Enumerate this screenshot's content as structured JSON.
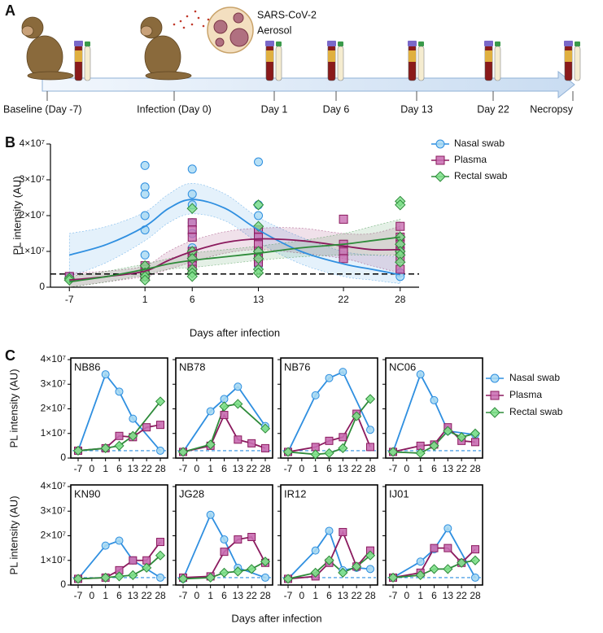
{
  "panel_labels": [
    "A",
    "B",
    "C"
  ],
  "panel_a": {
    "aerosol_label": [
      "SARS-CoV-2",
      "Aerosol"
    ],
    "timepoints": [
      "Baseline (Day -7)",
      "Infection (Day 0)",
      "Day 1",
      "Day 6",
      "Day 13",
      "Day 22",
      "Necropsy"
    ]
  },
  "chart_data": [
    {
      "type": "scatter_fit",
      "ylabel": "PL intensity (AU)",
      "xlabel": "Days after infection",
      "xlim": [
        -9,
        30
      ],
      "xticks": [
        -7,
        1,
        6,
        13,
        22,
        28
      ],
      "ylim": [
        0,
        40000000
      ],
      "yticks": [
        0,
        {
          "value": 10000000,
          "label": "1×10⁷"
        },
        {
          "value": 20000000,
          "label": "2×10⁷"
        },
        {
          "value": 30000000,
          "label": "3×10⁷"
        },
        {
          "value": 40000000,
          "label": "4×10⁷"
        }
      ],
      "threshold": 3700000,
      "series": [
        {
          "name": "Nasal swab",
          "color": "#2f8fe0",
          "fill": "#a6d8f2",
          "marker": "circle",
          "x": [
            -7,
            -7,
            -7,
            1,
            1,
            1,
            1,
            1,
            1,
            6,
            6,
            6,
            6,
            6,
            6,
            6,
            13,
            13,
            13,
            13,
            13,
            13,
            13,
            13,
            13,
            28,
            28,
            28,
            28
          ],
          "values": [
            2800000,
            3000000,
            2900000,
            34000000,
            28000000,
            26000000,
            20000000,
            16000000,
            9000000,
            33000000,
            26000000,
            23000000,
            18000000,
            15000000,
            11000000,
            7000000,
            35000000,
            23000000,
            20000000,
            16000000,
            14000000,
            10000000,
            8000000,
            7000000,
            6000000,
            11000000,
            10000000,
            4000000,
            3000000
          ],
          "fit": {
            "x": [
              -7,
              -3,
              1,
              3.5,
              6,
              9.5,
              13,
              17.5,
              22,
              25,
              28
            ],
            "values": [
              9000000,
              12000000,
              17000000,
              22000000,
              24500000,
              22000000,
              16000000,
              10000000,
              6500000,
              5000000,
              3500000
            ],
            "lower": [
              3000000,
              7000000,
              13000000,
              18000000,
              20500000,
              18500000,
              12500000,
              6500000,
              3000000,
              2000000,
              1000000
            ],
            "upper": [
              15000000,
              17000000,
              21000000,
              26000000,
              29000000,
              26000000,
              19500000,
              14000000,
              10000000,
              9000000,
              8500000
            ]
          }
        },
        {
          "name": "Plasma",
          "color": "#8b1a5e",
          "fill": "#c86bb0",
          "marker": "square",
          "x": [
            -7,
            1,
            1,
            1,
            1,
            1,
            6,
            6,
            6,
            6,
            6,
            6,
            6,
            6,
            13,
            13,
            13,
            13,
            13,
            13,
            22,
            22,
            22,
            22,
            28,
            28,
            28,
            28,
            28,
            28
          ],
          "values": [
            3000000,
            6000000,
            5000000,
            4000000,
            3500000,
            3000000,
            18000000,
            16000000,
            14000000,
            10000000,
            9000000,
            8000000,
            6000000,
            5000000,
            16000000,
            14000000,
            12000000,
            10000000,
            8000000,
            7000000,
            19000000,
            12000000,
            10000000,
            8000000,
            17000000,
            14000000,
            12000000,
            10000000,
            8000000,
            5000000
          ],
          "fit": {
            "x": [
              -7,
              -3,
              1,
              3.5,
              6,
              9.5,
              13,
              17.5,
              22,
              25,
              28
            ],
            "values": [
              2000000,
              3000000,
              4500000,
              7500000,
              10000000,
              12500000,
              13500000,
              13000000,
              11500000,
              10500000,
              10500000
            ],
            "lower": [
              0,
              1500000,
              3000000,
              5000000,
              7000000,
              9500000,
              10500000,
              9500000,
              8000000,
              6000000,
              4000000
            ],
            "upper": [
              4000000,
              4500000,
              6000000,
              10000000,
              13000000,
              15500000,
              16500000,
              16500000,
              15000000,
              15000000,
              17000000
            ]
          }
        },
        {
          "name": "Rectal swab",
          "color": "#2e8b3a",
          "fill": "#7ee08a",
          "marker": "diamond",
          "x": [
            -7,
            -7,
            1,
            1,
            1,
            1,
            6,
            6,
            6,
            6,
            6,
            6,
            13,
            13,
            13,
            13,
            13,
            13,
            28,
            28,
            28,
            28,
            28,
            28,
            28
          ],
          "values": [
            2500000,
            2000000,
            6000000,
            4000000,
            3000000,
            2000000,
            22000000,
            10000000,
            8000000,
            5000000,
            4000000,
            3000000,
            23000000,
            17000000,
            10000000,
            8000000,
            5000000,
            4000000,
            24000000,
            23000000,
            14000000,
            12000000,
            10000000,
            9000000,
            7000000
          ],
          "fit": {
            "x": [
              -7,
              -3,
              1,
              3.5,
              6,
              9.5,
              13,
              17.5,
              22,
              25,
              28
            ],
            "values": [
              1500000,
              3000000,
              5000000,
              6500000,
              7500000,
              8500000,
              9500000,
              11000000,
              12000000,
              13000000,
              14000000
            ],
            "lower": [
              0,
              1500000,
              3500000,
              5000000,
              5500000,
              6500000,
              7500000,
              8500000,
              9000000,
              9000000,
              9000000
            ],
            "upper": [
              3000000,
              4500000,
              6500000,
              8000000,
              9500000,
              10500000,
              11500000,
              13000000,
              15000000,
              17000000,
              19000000
            ]
          }
        }
      ]
    },
    {
      "type": "line_panels",
      "ylabel": "PL intensity (AU)",
      "xlabel": "Days after infection",
      "categories": [
        "-7",
        "0",
        "1",
        "6",
        "13",
        "22",
        "28"
      ],
      "ylim": [
        0,
        40000000
      ],
      "yticks": [
        0,
        {
          "value": 10000000,
          "label": "1×10⁷"
        },
        {
          "value": 20000000,
          "label": "2×10⁷"
        },
        {
          "value": 30000000,
          "label": "3×10⁷"
        },
        {
          "value": 40000000,
          "label": "4×10⁷"
        }
      ],
      "baseline": 3000000,
      "series": [
        {
          "name": "Nasal swab",
          "color": "#2f8fe0",
          "fill": "#a6d8f2",
          "marker": "circle"
        },
        {
          "name": "Plasma",
          "color": "#8b1a5e",
          "fill": "#c86bb0",
          "marker": "square"
        },
        {
          "name": "Rectal swab",
          "color": "#2e8b3a",
          "fill": "#7ee08a",
          "marker": "diamond"
        }
      ],
      "panels": [
        {
          "title": "NB86",
          "series": [
            {
              "x": [
                "-7",
                "1",
                "6",
                "13",
                "28"
              ],
              "values": [
                3000000,
                34000000,
                27000000,
                16000000,
                3000000
              ]
            },
            {
              "x": [
                "-7",
                "1",
                "6",
                "13",
                "22",
                "28"
              ],
              "values": [
                3000000,
                4000000,
                9000000,
                8500000,
                12500000,
                13500000
              ]
            },
            {
              "x": [
                "-7",
                "1",
                "6",
                "13",
                "28"
              ],
              "values": [
                3000000,
                4000000,
                5000000,
                9000000,
                23000000
              ]
            }
          ]
        },
        {
          "title": "NB78",
          "series": [
            {
              "x": [
                "-7",
                "1",
                "6",
                "13",
                "28"
              ],
              "values": [
                2500000,
                19000000,
                24000000,
                29000000,
                13000000
              ]
            },
            {
              "x": [
                "-7",
                "1",
                "6",
                "13",
                "22",
                "28"
              ],
              "values": [
                2500000,
                5000000,
                17500000,
                7500000,
                6000000,
                4000000
              ]
            },
            {
              "x": [
                "-7",
                "1",
                "6",
                "13",
                "28"
              ],
              "values": [
                2500000,
                5500000,
                21000000,
                22000000,
                12000000
              ]
            }
          ]
        },
        {
          "title": "NB76",
          "series": [
            {
              "x": [
                "-7",
                "1",
                "6",
                "13",
                "28"
              ],
              "values": [
                2500000,
                25500000,
                32500000,
                35000000,
                11500000
              ]
            },
            {
              "x": [
                "-7",
                "1",
                "6",
                "13",
                "22",
                "28"
              ],
              "values": [
                2500000,
                4500000,
                7000000,
                8500000,
                18000000,
                4500000
              ]
            },
            {
              "x": [
                "-7",
                "1",
                "6",
                "13",
                "22",
                "28"
              ],
              "values": [
                2500000,
                1500000,
                2000000,
                4000000,
                17000000,
                24000000
              ]
            }
          ]
        },
        {
          "title": "NC06",
          "series": [
            {
              "x": [
                "-7",
                "1",
                "6",
                "13",
                "28"
              ],
              "values": [
                2500000,
                34000000,
                23500000,
                11000000,
                9500000
              ]
            },
            {
              "x": [
                "-7",
                "1",
                "6",
                "13",
                "22",
                "28"
              ],
              "values": [
                2500000,
                5000000,
                5500000,
                12500000,
                7000000,
                6500000
              ]
            },
            {
              "x": [
                "-7",
                "1",
                "6",
                "13",
                "22",
                "28"
              ],
              "values": [
                2500000,
                2000000,
                5000000,
                11000000,
                8500000,
                10000000
              ]
            }
          ]
        },
        {
          "title": "KN90",
          "series": [
            {
              "x": [
                "-7",
                "1",
                "6",
                "13",
                "28"
              ],
              "values": [
                2500000,
                16000000,
                18000000,
                10000000,
                3000000
              ]
            },
            {
              "x": [
                "-7",
                "1",
                "6",
                "13",
                "22",
                "28"
              ],
              "values": [
                2500000,
                3000000,
                6000000,
                10000000,
                10000000,
                17500000
              ]
            },
            {
              "x": [
                "-7",
                "1",
                "6",
                "13",
                "22",
                "28"
              ],
              "values": [
                2500000,
                3000000,
                3500000,
                4000000,
                7000000,
                12000000
              ]
            }
          ]
        },
        {
          "title": "JG28",
          "series": [
            {
              "x": [
                "-7",
                "1",
                "6",
                "13",
                "28"
              ],
              "values": [
                2500000,
                28500000,
                18500000,
                7000000,
                3000000
              ]
            },
            {
              "x": [
                "-7",
                "1",
                "6",
                "13",
                "22",
                "28"
              ],
              "values": [
                3000000,
                3500000,
                13500000,
                18500000,
                19500000,
                9000000
              ]
            },
            {
              "x": [
                "-7",
                "1",
                "6",
                "13",
                "22",
                "28"
              ],
              "values": [
                2500000,
                3000000,
                5000000,
                5500000,
                6500000,
                9500000
              ]
            }
          ]
        },
        {
          "title": "IR12",
          "series": [
            {
              "x": [
                "-7",
                "1",
                "6",
                "13",
                "22",
                "28"
              ],
              "values": [
                2500000,
                14000000,
                22000000,
                6000000,
                7000000,
                6500000
              ]
            },
            {
              "x": [
                "-7",
                "1",
                "6",
                "13",
                "22",
                "28"
              ],
              "values": [
                2500000,
                3500000,
                9000000,
                21500000,
                7500000,
                14000000
              ]
            },
            {
              "x": [
                "-7",
                "1",
                "6",
                "13",
                "22",
                "28"
              ],
              "values": [
                2500000,
                5000000,
                10000000,
                5000000,
                7500000,
                12000000
              ]
            }
          ]
        },
        {
          "title": "IJ01",
          "series": [
            {
              "x": [
                "-7",
                "1",
                "6",
                "13",
                "28"
              ],
              "values": [
                3000000,
                9500000,
                14500000,
                23000000,
                3000000
              ]
            },
            {
              "x": [
                "-7",
                "1",
                "6",
                "13",
                "22",
                "28"
              ],
              "values": [
                3000000,
                5000000,
                15000000,
                15000000,
                9000000,
                14500000
              ]
            },
            {
              "x": [
                "-7",
                "1",
                "6",
                "13",
                "22",
                "28"
              ],
              "values": [
                3000000,
                4000000,
                6500000,
                6500000,
                9000000,
                10000000
              ]
            }
          ]
        }
      ]
    }
  ]
}
